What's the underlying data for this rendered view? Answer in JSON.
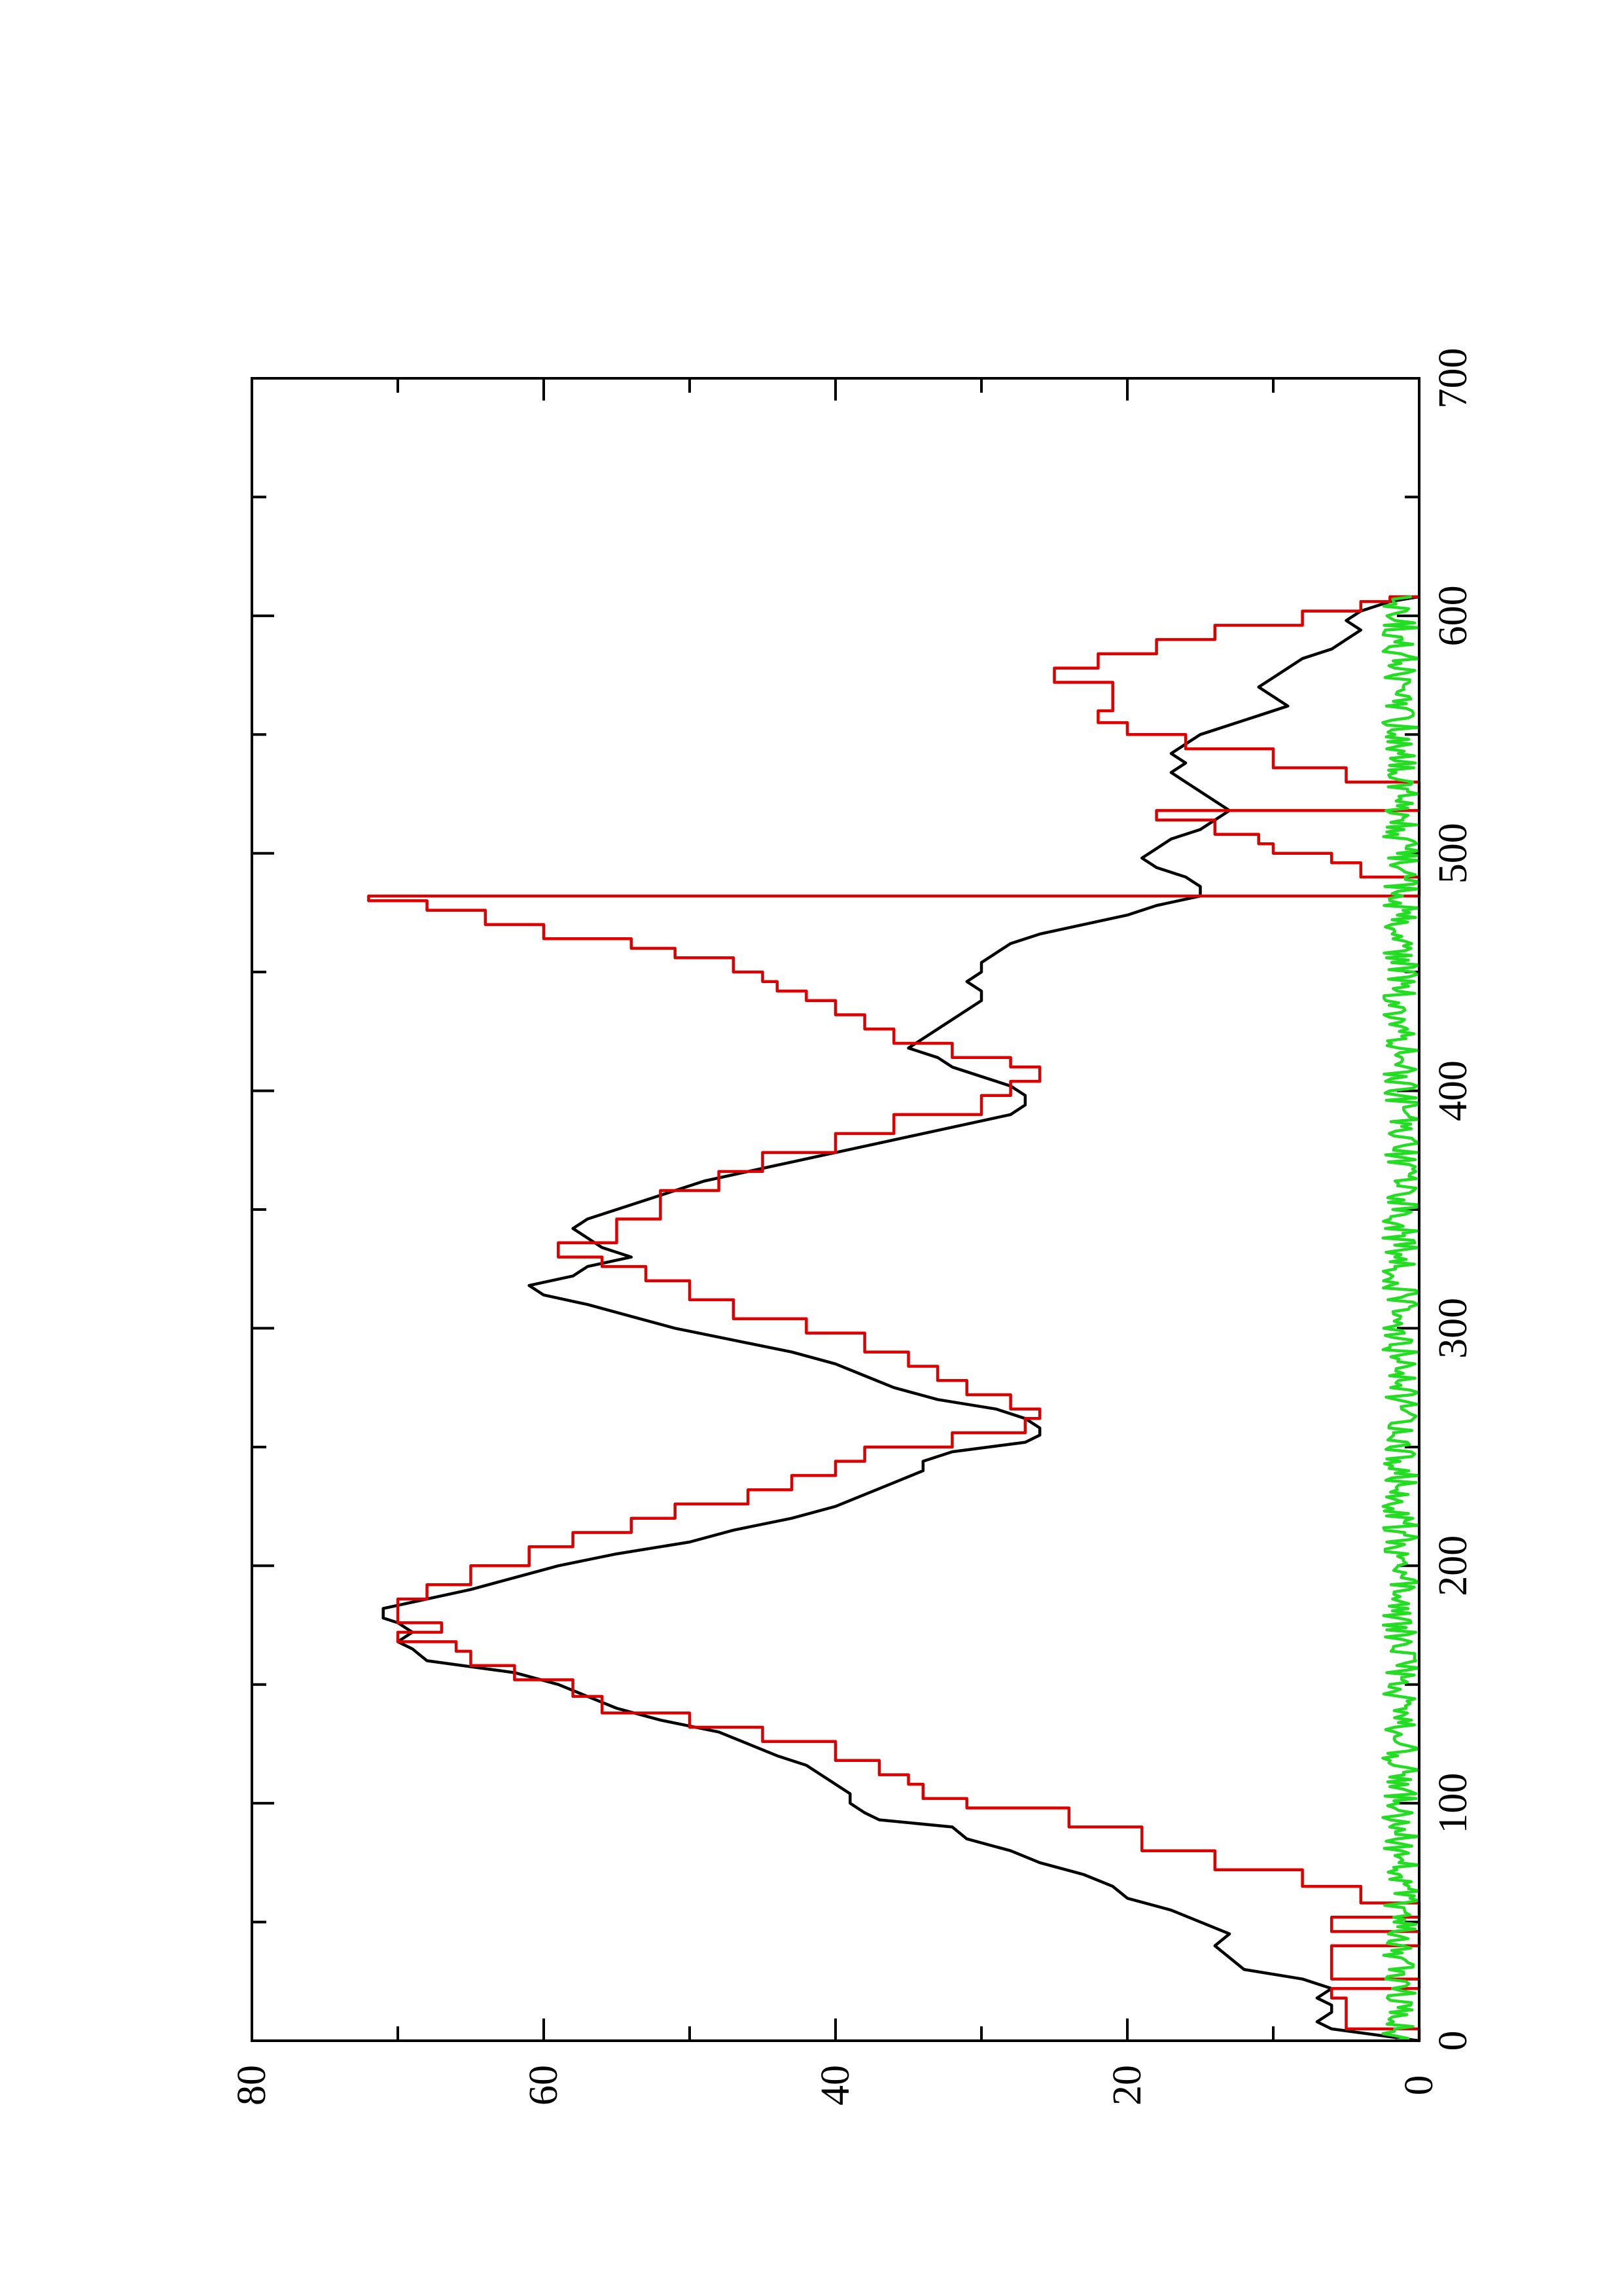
{
  "chart_data": {
    "type": "line",
    "orientation": "rotated 90deg counter-clockwise (x axis runs vertically, y axis runs horizontally)",
    "title": "",
    "xlabel": "",
    "ylabel": "",
    "xlim": [
      0,
      700
    ],
    "ylim": [
      0,
      80
    ],
    "x_ticks": [
      0,
      100,
      200,
      300,
      400,
      500,
      600,
      700
    ],
    "x_minor_ticks": [
      50,
      150,
      250,
      350,
      450,
      550,
      650
    ],
    "y_ticks": [
      0,
      20,
      40,
      60,
      80
    ],
    "grid": false,
    "legend": "none",
    "series": [
      {
        "color": "#000000",
        "step": false,
        "points": [
          [
            0,
            0
          ],
          [
            5,
            6
          ],
          [
            8,
            7
          ],
          [
            12,
            6
          ],
          [
            15,
            6
          ],
          [
            18,
            7
          ],
          [
            22,
            6
          ],
          [
            26,
            8
          ],
          [
            30,
            12
          ],
          [
            35,
            13
          ],
          [
            40,
            14
          ],
          [
            45,
            13
          ],
          [
            50,
            15
          ],
          [
            55,
            17
          ],
          [
            60,
            20
          ],
          [
            65,
            21
          ],
          [
            70,
            23
          ],
          [
            75,
            26
          ],
          [
            80,
            28
          ],
          [
            85,
            31
          ],
          [
            90,
            32
          ],
          [
            93,
            37
          ],
          [
            96,
            38
          ],
          [
            100,
            39
          ],
          [
            104,
            39
          ],
          [
            108,
            40
          ],
          [
            112,
            41
          ],
          [
            116,
            42
          ],
          [
            120,
            44
          ],
          [
            125,
            46
          ],
          [
            130,
            48
          ],
          [
            135,
            52
          ],
          [
            140,
            55
          ],
          [
            145,
            57
          ],
          [
            150,
            59
          ],
          [
            155,
            62
          ],
          [
            160,
            68
          ],
          [
            165,
            69
          ],
          [
            168,
            70
          ],
          [
            172,
            69
          ],
          [
            176,
            70
          ],
          [
            178,
            71
          ],
          [
            182,
            71
          ],
          [
            186,
            68
          ],
          [
            190,
            65
          ],
          [
            195,
            62
          ],
          [
            200,
            59
          ],
          [
            205,
            55
          ],
          [
            210,
            50
          ],
          [
            215,
            47
          ],
          [
            220,
            43
          ],
          [
            225,
            40
          ],
          [
            230,
            38
          ],
          [
            235,
            36
          ],
          [
            240,
            34
          ],
          [
            244,
            34
          ],
          [
            248,
            32
          ],
          [
            252,
            27
          ],
          [
            255,
            26
          ],
          [
            258,
            26
          ],
          [
            262,
            27
          ],
          [
            266,
            29
          ],
          [
            270,
            33
          ],
          [
            275,
            36
          ],
          [
            280,
            38
          ],
          [
            285,
            40
          ],
          [
            290,
            43
          ],
          [
            295,
            47
          ],
          [
            300,
            51
          ],
          [
            305,
            54
          ],
          [
            310,
            57
          ],
          [
            314,
            60
          ],
          [
            318,
            61
          ],
          [
            322,
            58
          ],
          [
            326,
            57
          ],
          [
            330,
            54
          ],
          [
            334,
            56
          ],
          [
            338,
            57
          ],
          [
            342,
            58
          ],
          [
            346,
            57
          ],
          [
            350,
            55
          ],
          [
            354,
            53
          ],
          [
            358,
            51
          ],
          [
            362,
            49
          ],
          [
            366,
            46
          ],
          [
            370,
            43
          ],
          [
            374,
            40
          ],
          [
            378,
            37
          ],
          [
            382,
            34
          ],
          [
            386,
            31
          ],
          [
            390,
            28
          ],
          [
            394,
            27
          ],
          [
            398,
            27
          ],
          [
            402,
            28
          ],
          [
            406,
            30
          ],
          [
            410,
            32
          ],
          [
            414,
            33
          ],
          [
            418,
            35
          ],
          [
            422,
            34
          ],
          [
            426,
            33
          ],
          [
            430,
            32
          ],
          [
            434,
            31
          ],
          [
            438,
            30
          ],
          [
            442,
            30
          ],
          [
            446,
            31
          ],
          [
            450,
            30
          ],
          [
            454,
            30
          ],
          [
            458,
            29
          ],
          [
            462,
            28
          ],
          [
            466,
            26
          ],
          [
            470,
            23
          ],
          [
            474,
            20
          ],
          [
            478,
            18
          ],
          [
            482,
            15
          ],
          [
            486,
            15
          ],
          [
            490,
            16
          ],
          [
            494,
            18
          ],
          [
            498,
            19
          ],
          [
            502,
            18
          ],
          [
            506,
            17
          ],
          [
            510,
            15
          ],
          [
            514,
            14
          ],
          [
            518,
            13
          ],
          [
            522,
            14
          ],
          [
            526,
            15
          ],
          [
            530,
            16
          ],
          [
            534,
            17
          ],
          [
            538,
            16
          ],
          [
            542,
            17
          ],
          [
            546,
            16
          ],
          [
            550,
            15
          ],
          [
            554,
            13
          ],
          [
            558,
            11
          ],
          [
            562,
            9
          ],
          [
            566,
            10
          ],
          [
            570,
            11
          ],
          [
            574,
            10
          ],
          [
            578,
            9
          ],
          [
            582,
            8
          ],
          [
            586,
            6
          ],
          [
            590,
            5
          ],
          [
            594,
            4
          ],
          [
            598,
            5
          ],
          [
            602,
            4
          ],
          [
            606,
            2
          ],
          [
            608,
            0
          ]
        ]
      },
      {
        "color": "#dd0000",
        "step": true,
        "points": [
          [
            0,
            0
          ],
          [
            5,
            5
          ],
          [
            18,
            6
          ],
          [
            22,
            0
          ],
          [
            26,
            6
          ],
          [
            40,
            0
          ],
          [
            46,
            6
          ],
          [
            52,
            0
          ],
          [
            58,
            4
          ],
          [
            65,
            8
          ],
          [
            72,
            14
          ],
          [
            80,
            19
          ],
          [
            90,
            24
          ],
          [
            98,
            31
          ],
          [
            102,
            34
          ],
          [
            108,
            35
          ],
          [
            112,
            37
          ],
          [
            118,
            40
          ],
          [
            126,
            45
          ],
          [
            132,
            50
          ],
          [
            138,
            56
          ],
          [
            145,
            58
          ],
          [
            152,
            62
          ],
          [
            158,
            65
          ],
          [
            164,
            66
          ],
          [
            168,
            70
          ],
          [
            172,
            67
          ],
          [
            176,
            70
          ],
          [
            180,
            70
          ],
          [
            186,
            68
          ],
          [
            192,
            65
          ],
          [
            200,
            61
          ],
          [
            208,
            58
          ],
          [
            214,
            54
          ],
          [
            220,
            51
          ],
          [
            226,
            46
          ],
          [
            232,
            43
          ],
          [
            238,
            40
          ],
          [
            244,
            38
          ],
          [
            250,
            32
          ],
          [
            256,
            27
          ],
          [
            262,
            26
          ],
          [
            266,
            28
          ],
          [
            272,
            31
          ],
          [
            278,
            33
          ],
          [
            284,
            35
          ],
          [
            290,
            38
          ],
          [
            298,
            42
          ],
          [
            304,
            47
          ],
          [
            312,
            50
          ],
          [
            320,
            53
          ],
          [
            326,
            56
          ],
          [
            330,
            59
          ],
          [
            336,
            55
          ],
          [
            340,
            55
          ],
          [
            346,
            52
          ],
          [
            350,
            52
          ],
          [
            358,
            48
          ],
          [
            366,
            45
          ],
          [
            374,
            40
          ],
          [
            382,
            36
          ],
          [
            390,
            30
          ],
          [
            398,
            28
          ],
          [
            404,
            26
          ],
          [
            410,
            28
          ],
          [
            414,
            32
          ],
          [
            420,
            36
          ],
          [
            426,
            38
          ],
          [
            432,
            40
          ],
          [
            438,
            42
          ],
          [
            442,
            44
          ],
          [
            446,
            45
          ],
          [
            450,
            47
          ],
          [
            456,
            51
          ],
          [
            460,
            54
          ],
          [
            464,
            60
          ],
          [
            470,
            64
          ],
          [
            476,
            68
          ],
          [
            480,
            72
          ],
          [
            482,
            0
          ],
          [
            490,
            4
          ],
          [
            496,
            6
          ],
          [
            500,
            10
          ],
          [
            504,
            11
          ],
          [
            508,
            14
          ],
          [
            514,
            18
          ],
          [
            518,
            0
          ],
          [
            530,
            5
          ],
          [
            536,
            10
          ],
          [
            544,
            16
          ],
          [
            550,
            20
          ],
          [
            555,
            22
          ],
          [
            560,
            21
          ],
          [
            566,
            21
          ],
          [
            572,
            25
          ],
          [
            578,
            22
          ],
          [
            584,
            18
          ],
          [
            590,
            14
          ],
          [
            596,
            8
          ],
          [
            602,
            4
          ],
          [
            606,
            2
          ],
          [
            608,
            0
          ]
        ]
      },
      {
        "color": "#22dd22",
        "step": false,
        "noisy_baseline": true,
        "x_range": [
          0,
          608
        ],
        "y_range": [
          0,
          2.5
        ]
      }
    ]
  }
}
